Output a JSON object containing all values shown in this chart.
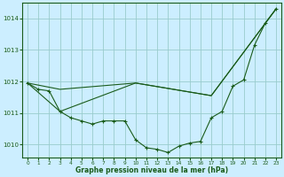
{
  "background_color": "#cceeff",
  "grid_color": "#99cccc",
  "line_color": "#1a5c1a",
  "xlabel": "Graphe pression niveau de la mer (hPa)",
  "xlim": [
    -0.5,
    23.5
  ],
  "ylim": [
    1009.6,
    1014.5
  ],
  "yticks": [
    1010,
    1011,
    1012,
    1013,
    1014
  ],
  "xticks": [
    0,
    1,
    2,
    3,
    4,
    5,
    6,
    7,
    8,
    9,
    10,
    11,
    12,
    13,
    14,
    15,
    16,
    17,
    18,
    19,
    20,
    21,
    22,
    23
  ],
  "main_series": {
    "x": [
      0,
      1,
      2,
      3,
      4,
      5,
      6,
      7,
      8,
      9,
      10,
      11,
      12,
      13,
      14,
      15,
      16,
      17,
      18,
      19,
      20,
      21,
      22,
      23
    ],
    "y": [
      1011.95,
      1011.75,
      1011.7,
      1011.05,
      1010.85,
      1010.75,
      1010.65,
      1010.75,
      1010.75,
      1010.75,
      1010.15,
      1009.9,
      1009.85,
      1009.75,
      1009.95,
      1010.05,
      1010.1,
      1010.85,
      1011.05,
      1011.85,
      1012.05,
      1013.15,
      1013.85,
      1014.3
    ]
  },
  "line1": {
    "x": [
      0,
      3,
      10,
      17,
      23
    ],
    "y": [
      1011.95,
      1011.75,
      1011.95,
      1011.55,
      1014.3
    ]
  },
  "line2": {
    "x": [
      0,
      3,
      10,
      17,
      23
    ],
    "y": [
      1011.95,
      1011.05,
      1011.95,
      1011.55,
      1014.3
    ]
  }
}
